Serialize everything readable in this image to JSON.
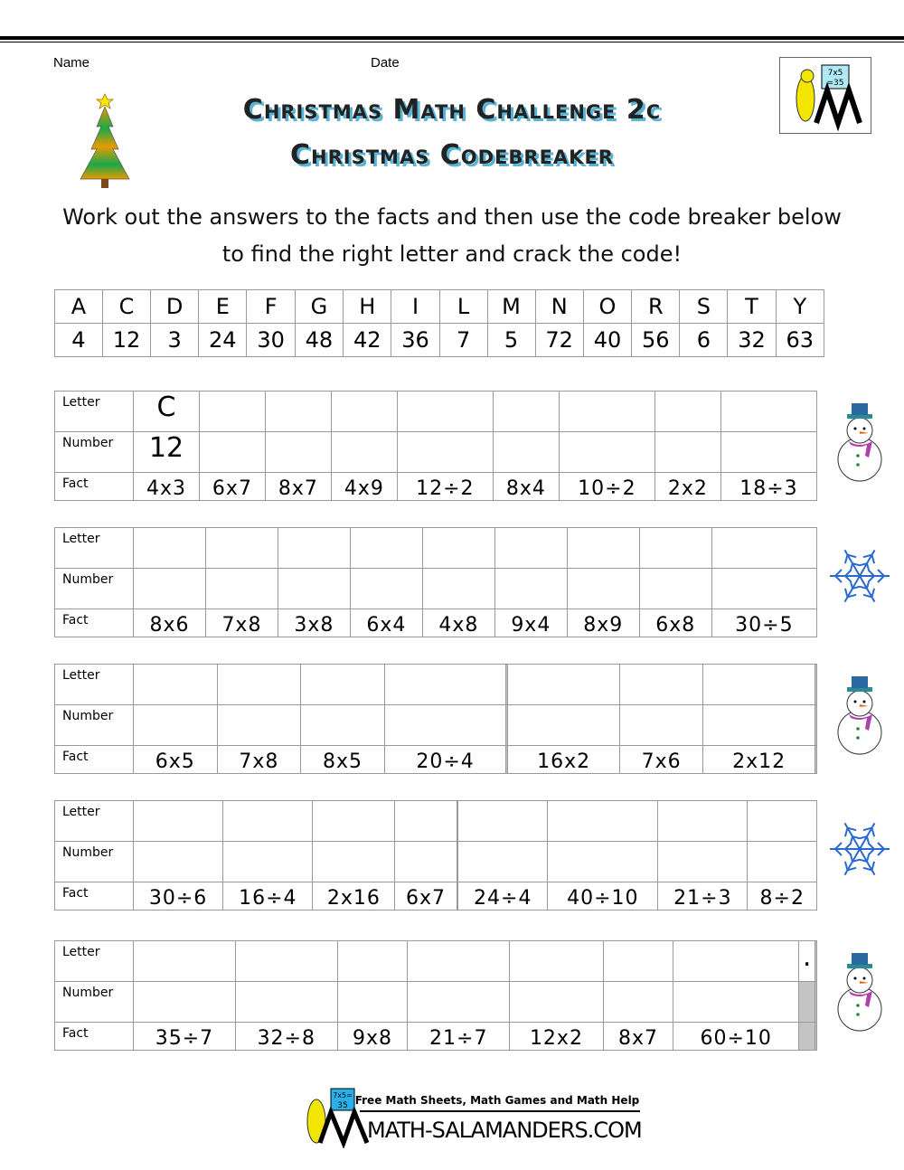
{
  "header": {
    "name_label": "Name",
    "date_label": "Date",
    "title1": "Christmas Math Challenge 2c",
    "title2": "Christmas Codebreaker",
    "logo_text": [
      "7x5",
      "=35"
    ]
  },
  "instructions": [
    "Work out the answers to the facts and then use the code breaker below",
    "to find the right letter and crack the code!"
  ],
  "code": {
    "letters": [
      "A",
      "C",
      "D",
      "E",
      "F",
      "G",
      "H",
      "I",
      "L",
      "M",
      "N",
      "O",
      "R",
      "S",
      "T",
      "Y"
    ],
    "numbers": [
      "4",
      "12",
      "3",
      "24",
      "30",
      "48",
      "42",
      "36",
      "7",
      "5",
      "72",
      "40",
      "56",
      "6",
      "32",
      "63"
    ]
  },
  "row_labels": {
    "letter": "Letter",
    "number": "Number",
    "fact": "Fact"
  },
  "puzzles": [
    {
      "letters": [
        "C",
        "",
        "",
        "",
        "",
        "",
        "",
        "",
        ""
      ],
      "numbers": [
        "12",
        "",
        "",
        "",
        "",
        "",
        "",
        "",
        ""
      ],
      "facts": [
        "4x3",
        "6x7",
        "8x7",
        "4x9",
        "12÷2",
        "8x4",
        "10÷2",
        "2x2",
        "18÷3"
      ],
      "gray": []
    },
    {
      "letters": [
        "",
        "",
        "",
        "",
        "",
        "",
        "",
        "",
        ""
      ],
      "numbers": [
        "",
        "",
        "",
        "",
        "",
        "",
        "",
        "",
        ""
      ],
      "facts": [
        "8x6",
        "7x8",
        "3x8",
        "6x4",
        "4x8",
        "9x4",
        "8x9",
        "6x8",
        "30÷5"
      ],
      "gray": []
    },
    {
      "letters": [
        "",
        "",
        "",
        "",
        "",
        "",
        "",
        "",
        ""
      ],
      "numbers": [
        "",
        "",
        "",
        "",
        "",
        "",
        "",
        "",
        ""
      ],
      "facts": [
        "6x5",
        "7x8",
        "8x5",
        "20÷4",
        "",
        "16x2",
        "7x6",
        "2x12",
        ""
      ],
      "gray": [
        [
          0,
          4
        ],
        [
          1,
          4
        ],
        [
          2,
          4
        ],
        [
          0,
          8
        ],
        [
          1,
          8
        ],
        [
          2,
          8
        ]
      ]
    },
    {
      "letters": [
        "",
        "",
        "",
        "",
        "",
        "",
        "",
        "",
        ""
      ],
      "numbers": [
        "",
        "",
        "",
        "",
        "",
        "",
        "",
        "",
        ""
      ],
      "facts": [
        "30÷6",
        "16÷4",
        "2x16",
        "6x7",
        "",
        "24÷4",
        "40÷10",
        "21÷3",
        "8÷2"
      ],
      "gray": [
        [
          0,
          4
        ],
        [
          1,
          4
        ],
        [
          2,
          4
        ]
      ]
    },
    {
      "letters": [
        "",
        "",
        "",
        "",
        "",
        "",
        "",
        ".",
        ""
      ],
      "numbers": [
        "",
        "",
        "",
        "",
        "",
        "",
        "",
        "",
        ""
      ],
      "facts": [
        "35÷7",
        "32÷8",
        "9x8",
        "21÷7",
        "12x2",
        "8x7",
        "60÷10",
        "",
        ""
      ],
      "gray": [
        [
          0,
          8
        ],
        [
          1,
          8
        ],
        [
          2,
          8
        ],
        [
          1,
          7
        ],
        [
          2,
          7
        ]
      ]
    }
  ],
  "side_icons": [
    "snowman-icon",
    "snowflake-icon",
    "snowman-icon",
    "snowflake-icon",
    "snowman-icon"
  ],
  "footer": {
    "tagline": "Free Math Sheets, Math Games and Math Help",
    "site": "MATH-SALAMANDERS.COM",
    "board": [
      "7x5=",
      "35"
    ]
  },
  "colors": {
    "title_shadow": "#5ab4d6",
    "gray_cell": "#c4c4c4"
  }
}
